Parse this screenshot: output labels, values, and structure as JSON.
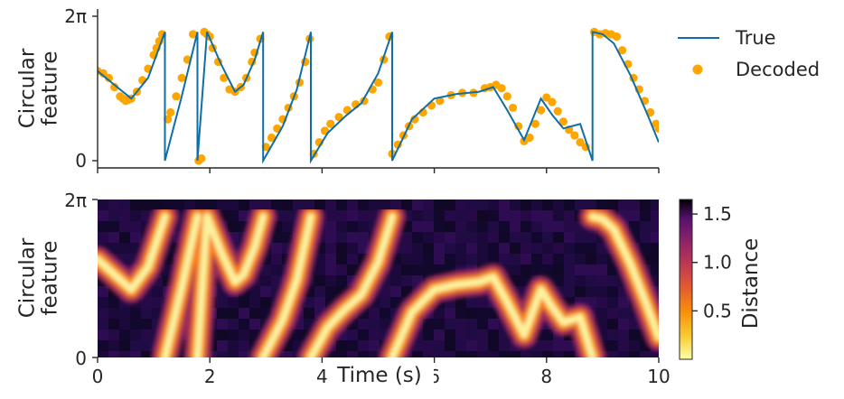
{
  "chart_data": [
    {
      "type": "line",
      "panel": "top",
      "ylabel": "Circular\nfeature",
      "yticks": [
        "0",
        "2π"
      ],
      "ylim": [
        0,
        6.283
      ],
      "xlim": [
        0,
        10
      ],
      "xtick_values": [
        0,
        2,
        4,
        6,
        8,
        10
      ],
      "grid": false,
      "legend": {
        "placement": "outside-right",
        "entries": [
          "True",
          "Decoded"
        ]
      },
      "colors": {
        "true": "#0f6ea6",
        "decoded": "#ffa500"
      },
      "series": [
        {
          "name": "True",
          "style": "line",
          "x": [
            0,
            0.3,
            0.6,
            0.9,
            1.2,
            1.2,
            1.5,
            1.78,
            1.78,
            1.95,
            2.2,
            2.45,
            2.6,
            2.8,
            2.95,
            2.95,
            3.3,
            3.55,
            3.8,
            3.8,
            4.1,
            4.4,
            4.7,
            5.0,
            5.25,
            5.25,
            5.6,
            6.0,
            6.4,
            6.8,
            7.05,
            7.3,
            7.6,
            7.9,
            8.1,
            8.3,
            8.6,
            8.82,
            8.82,
            9.0,
            9.2,
            9.5,
            9.8,
            10.0
          ],
          "y": [
            3.9,
            3.3,
            2.7,
            3.6,
            5.6,
            0.0,
            2.8,
            5.6,
            0.0,
            5.6,
            4.2,
            3.0,
            3.3,
            4.4,
            5.6,
            0.0,
            1.5,
            3.1,
            5.6,
            0.0,
            1.2,
            1.9,
            2.5,
            3.8,
            5.6,
            0.0,
            1.8,
            2.7,
            2.9,
            3.0,
            3.2,
            2.2,
            0.9,
            2.7,
            2.0,
            1.4,
            1.6,
            0.0,
            5.6,
            5.5,
            5.1,
            3.7,
            2.0,
            0.8
          ]
        },
        {
          "name": "Decoded",
          "style": "scatter",
          "x": [
            0.0,
            0.1,
            0.2,
            0.3,
            0.4,
            0.45,
            0.5,
            0.55,
            0.6,
            0.7,
            0.8,
            0.9,
            1.0,
            1.05,
            1.1,
            1.15,
            1.25,
            1.3,
            1.4,
            1.5,
            1.6,
            1.7,
            1.8,
            1.82,
            1.85,
            1.9,
            1.95,
            2.0,
            2.05,
            2.15,
            2.25,
            2.35,
            2.45,
            2.55,
            2.65,
            2.75,
            2.8,
            2.9,
            3.0,
            3.1,
            3.2,
            3.3,
            3.4,
            3.5,
            3.6,
            3.7,
            3.78,
            3.85,
            3.95,
            4.05,
            4.15,
            4.3,
            4.45,
            4.6,
            4.75,
            4.9,
            5.0,
            5.1,
            5.2,
            5.25,
            5.35,
            5.45,
            5.55,
            5.65,
            5.8,
            5.95,
            6.1,
            6.3,
            6.5,
            6.7,
            6.9,
            7.0,
            7.1,
            7.2,
            7.3,
            7.4,
            7.5,
            7.6,
            7.7,
            7.8,
            7.9,
            8.0,
            8.1,
            8.2,
            8.3,
            8.4,
            8.5,
            8.6,
            8.7,
            8.85,
            8.95,
            9.05,
            9.15,
            9.25,
            9.35,
            9.45,
            9.55,
            9.65,
            9.75,
            9.85,
            9.95,
            10.0
          ],
          "y": [
            3.9,
            3.8,
            3.6,
            3.2,
            2.8,
            2.7,
            2.6,
            2.65,
            2.7,
            3.0,
            3.5,
            4.0,
            4.6,
            4.9,
            5.2,
            5.5,
            1.8,
            2.1,
            2.8,
            3.6,
            4.4,
            5.5,
            0.0,
            0.05,
            0.1,
            5.6,
            5.5,
            5.4,
            4.9,
            4.3,
            3.6,
            3.1,
            3.0,
            3.2,
            3.6,
            4.3,
            4.7,
            5.3,
            0.6,
            1.0,
            1.4,
            1.8,
            2.3,
            2.8,
            3.4,
            4.3,
            5.3,
            0.3,
            0.8,
            1.3,
            1.6,
            1.9,
            2.2,
            2.45,
            2.6,
            3.1,
            3.4,
            4.4,
            5.4,
            0.3,
            0.7,
            1.1,
            1.5,
            1.8,
            2.1,
            2.4,
            2.6,
            2.85,
            2.95,
            2.95,
            3.15,
            3.2,
            3.3,
            3.15,
            2.8,
            2.3,
            1.5,
            0.85,
            1.0,
            1.6,
            2.2,
            2.75,
            2.55,
            2.15,
            1.7,
            1.35,
            1.1,
            0.8,
            0.6,
            5.6,
            5.5,
            5.55,
            5.5,
            5.4,
            4.8,
            4.2,
            3.6,
            3.1,
            2.6,
            2.1,
            1.6,
            1.4
          ]
        }
      ]
    },
    {
      "type": "heatmap",
      "panel": "bottom",
      "xlabel": "Time (s)",
      "ylabel": "Circular\nfeature",
      "yticks": [
        "0",
        "2π"
      ],
      "ylim": [
        0,
        6.283
      ],
      "xlim": [
        0,
        10
      ],
      "xticks": [
        "0",
        "2",
        "4",
        "6",
        "8",
        "10"
      ],
      "xtick_values": [
        0,
        2,
        4,
        6,
        8,
        10
      ],
      "colormap": "inferno_r",
      "colorbar": {
        "label": "Distance",
        "ticks": [
          "0.5",
          "1.0",
          "1.5"
        ],
        "tick_values": [
          0.5,
          1.0,
          1.5
        ],
        "range": [
          0.0,
          1.65
        ]
      },
      "note": "bright band follows the same trajectory as the True series above"
    }
  ]
}
